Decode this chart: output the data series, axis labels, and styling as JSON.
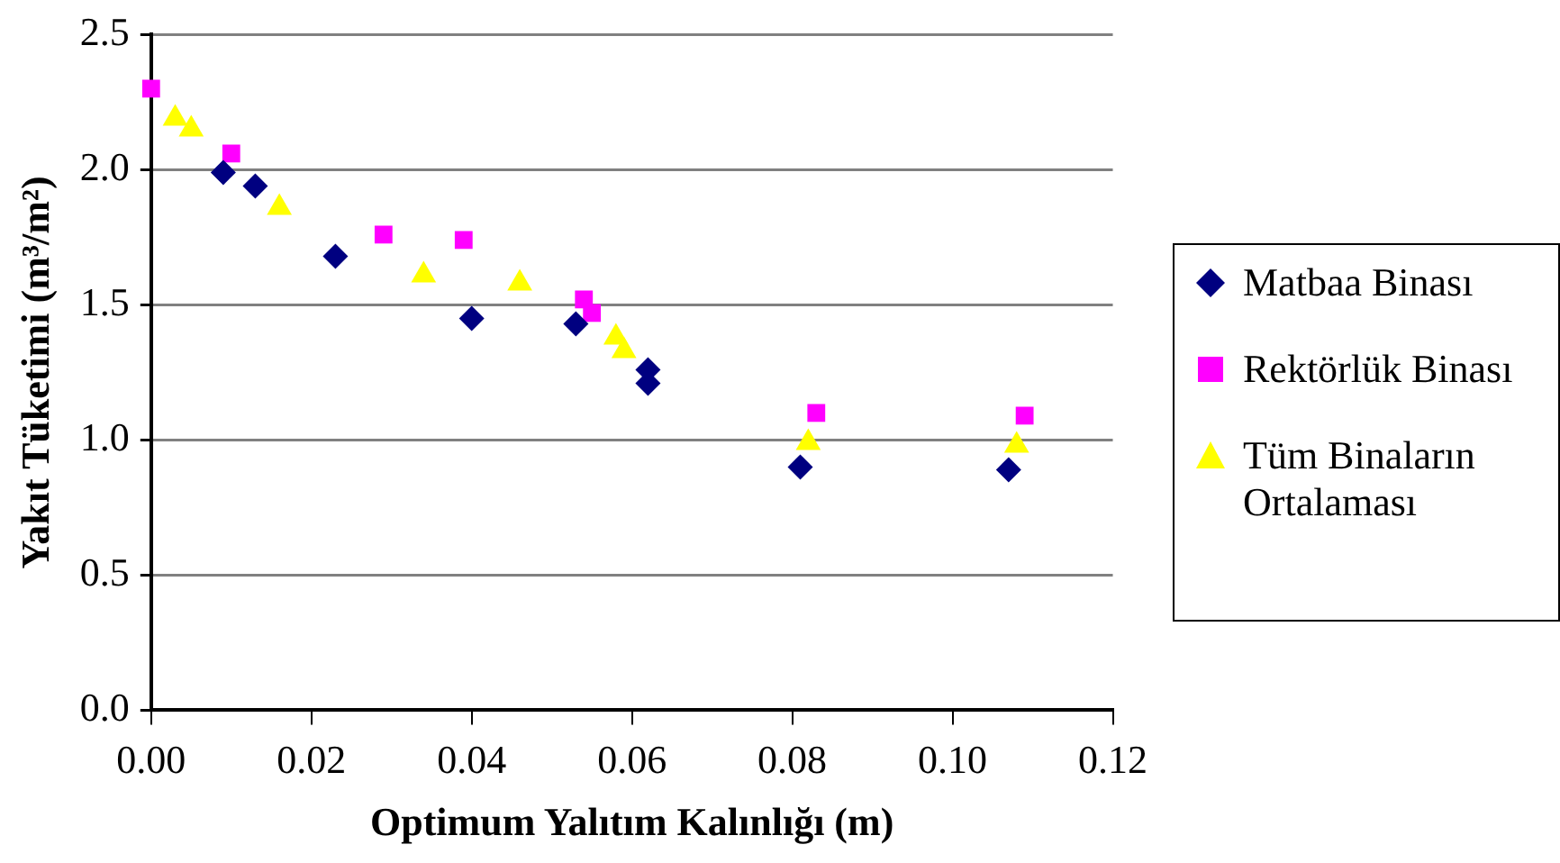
{
  "chart_data": {
    "type": "scatter",
    "xlabel": "Optimum Yalıtım Kalınlığı (m)",
    "ylabel": "Yakıt Tüketimi (m³/m²)",
    "xlim": [
      0,
      0.12
    ],
    "xticks": [
      {
        "value": 0,
        "label": "0.00"
      },
      {
        "value": 0.02,
        "label": "0.02"
      },
      {
        "value": 0.04,
        "label": "0.04"
      },
      {
        "value": 0.06,
        "label": "0.06"
      },
      {
        "value": 0.08,
        "label": "0.08"
      },
      {
        "value": 0.1,
        "label": "0.10"
      },
      {
        "value": 0.12,
        "label": "0.12"
      }
    ],
    "ylim": [
      0,
      2.5
    ],
    "yticks": [
      {
        "value": 0,
        "label": "0.0"
      },
      {
        "value": 0.5,
        "label": "0.5"
      },
      {
        "value": 1,
        "label": "1.0"
      },
      {
        "value": 1.5,
        "label": "1.5"
      },
      {
        "value": 2,
        "label": "2.0"
      },
      {
        "value": 2.5,
        "label": "2.5"
      }
    ],
    "grid": "y",
    "legend": "right",
    "series": [
      {
        "name": "Matbaa Binası",
        "color": "#000080",
        "marker": "diamond",
        "x": [
          0.009,
          0.013,
          0.023,
          0.04,
          0.053,
          0.062,
          0.062,
          0.081,
          0.107
        ],
        "values": [
          1.99,
          1.94,
          1.68,
          1.45,
          1.43,
          1.26,
          1.21,
          0.9,
          0.89
        ]
      },
      {
        "name": "Rektörlük Binası",
        "color": "#ff00ff",
        "marker": "square",
        "x": [
          0,
          0.01,
          0.029,
          0.039,
          0.054,
          0.055,
          0.083,
          0.109
        ],
        "values": [
          2.3,
          2.06,
          1.76,
          1.74,
          1.52,
          1.47,
          1.1,
          1.09
        ]
      },
      {
        "name": "Tüm Binaların Ortalaması",
        "color": "#ffff00",
        "marker": "triangle",
        "x": [
          0.003,
          0.005,
          0.016,
          0.034,
          0.046,
          0.058,
          0.059,
          0.082,
          0.108
        ],
        "values": [
          2.19,
          2.15,
          1.86,
          1.61,
          1.58,
          1.38,
          1.33,
          0.99,
          0.98
        ]
      }
    ]
  }
}
